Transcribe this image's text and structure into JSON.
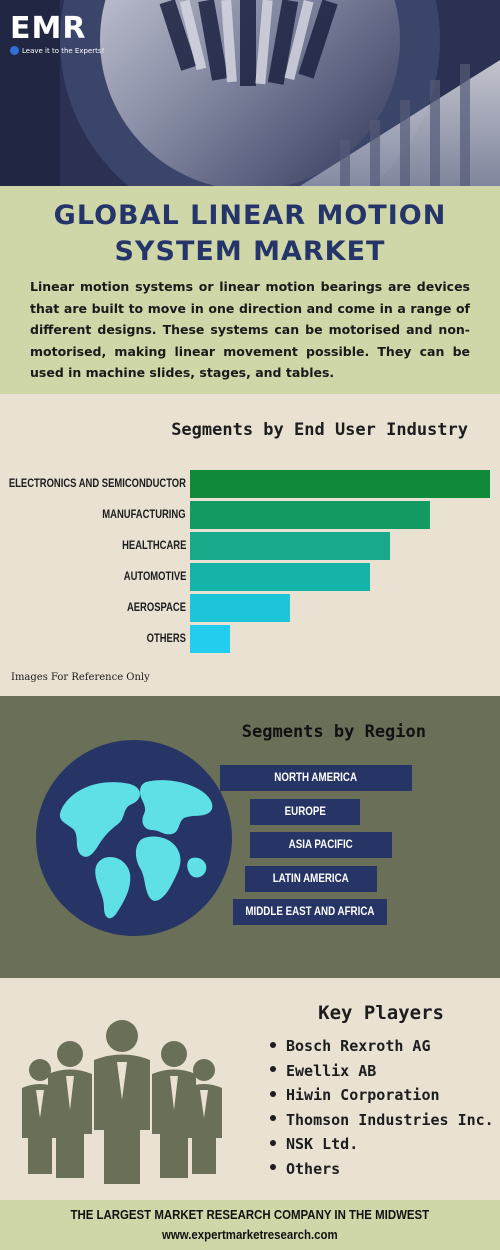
{
  "logo": {
    "mark": "EMR",
    "tagline": "Leave it to the Experts!"
  },
  "header": {
    "title": "Global Linear Motion System Market",
    "intro": "Linear motion systems or linear motion bearings are devices that are built to move in one direction and come in a range of different designs. These systems can be motorised and non-motorised, making linear movement possible. They can be used in machine slides, stages, and tables."
  },
  "end_user": {
    "title": "Segments by End User Industry",
    "note": "Images For Reference Only",
    "items": [
      {
        "label": "ELECTRONICS AND SEMICONDUCTOR",
        "value": 100,
        "color": "#108a3a"
      },
      {
        "label": "MANUFACTURING",
        "value": 80,
        "color": "#139a63"
      },
      {
        "label": "HEALTHCARE",
        "value": 66.7,
        "color": "#17a98a"
      },
      {
        "label": "AUTOMOTIVE",
        "value": 60,
        "color": "#16b3a8"
      },
      {
        "label": "AEROSPACE",
        "value": 33.3,
        "color": "#1ec4d8"
      },
      {
        "label": "OTHERS",
        "value": 13.3,
        "color": "#22cdf0"
      }
    ]
  },
  "region": {
    "title": "Segments by Region",
    "items": [
      "NORTH AMERICA",
      "EUROPE",
      "ASIA PACIFIC",
      "LATIN AMERICA",
      "MIDDLE EAST AND AFRICA"
    ]
  },
  "key_players": {
    "title": "Key Players",
    "items": [
      "Bosch Rexroth AG",
      "Ewellix AB",
      "Hiwin Corporation",
      "Thomson Industries Inc.",
      "NSK Ltd.",
      "Others"
    ]
  },
  "footer": {
    "line1": "THE LARGEST MARKET RESEARCH COMPANY IN THE MIDWEST",
    "line2": "www.expertmarketresearch.com"
  },
  "colors": {
    "navy": "#263565",
    "olive": "#6a6f57",
    "sage": "#cfd7a8",
    "cream": "#e9e2d3"
  }
}
